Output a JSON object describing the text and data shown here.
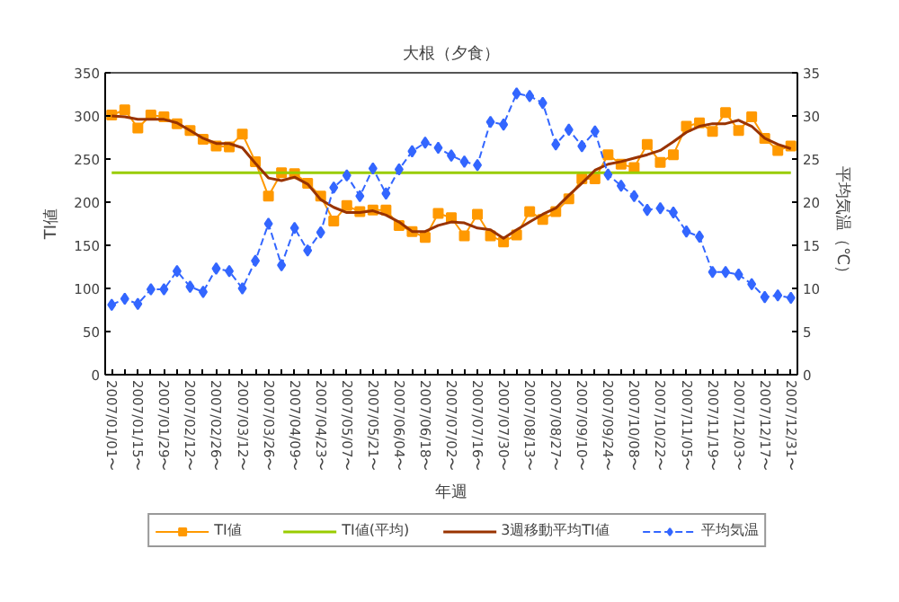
{
  "chart_data": {
    "type": "line",
    "title": "大根（夕食）",
    "xlabel": "年週",
    "ylabel": "TI値",
    "y2label": "平均気温（℃）",
    "categories": [
      "2007/01/01〜",
      null,
      "2007/01/15〜",
      null,
      "2007/01/29〜",
      null,
      "2007/02/12〜",
      null,
      "2007/02/26〜",
      null,
      "2007/03/12〜",
      null,
      "2007/03/26〜",
      null,
      "2007/04/09〜",
      null,
      "2007/04/23〜",
      null,
      "2007/05/07〜",
      null,
      "2007/05/21〜",
      null,
      "2007/06/04〜",
      null,
      "2007/06/18〜",
      null,
      "2007/07/02〜",
      null,
      "2007/07/16〜",
      null,
      "2007/07/30〜",
      null,
      "2007/08/13〜",
      null,
      "2007/08/27〜",
      null,
      "2007/09/10〜",
      null,
      "2007/09/24〜",
      null,
      "2007/10/08〜",
      null,
      "2007/10/22〜",
      null,
      "2007/11/05〜",
      null,
      "2007/11/19〜",
      null,
      "2007/12/03〜",
      null,
      "2007/12/17〜",
      null,
      "2007/12/31〜"
    ],
    "ylim": [
      0,
      350
    ],
    "yticks": [
      0,
      50,
      100,
      150,
      200,
      250,
      300,
      350
    ],
    "y2lim": [
      0,
      35
    ],
    "y2ticks": [
      0,
      5,
      10,
      15,
      20,
      25,
      30,
      35
    ],
    "grid": false,
    "legend": "bottom",
    "series": [
      {
        "name": "TI値",
        "color": "#ff9900",
        "marker": "square",
        "line_style": "solid",
        "values": [
          301,
          307,
          286,
          301,
          299,
          291,
          283,
          273,
          265,
          264,
          279,
          247,
          207,
          234,
          233,
          222,
          207,
          178,
          196,
          189,
          191,
          191,
          173,
          166,
          159,
          187,
          182,
          161,
          186,
          161,
          154,
          162,
          189,
          180,
          189,
          204,
          227,
          227,
          255,
          244,
          240,
          267,
          246,
          255,
          288,
          292,
          282,
          304,
          283,
          299,
          274,
          260,
          265
        ]
      },
      {
        "name": "TI値(平均)",
        "color": "#99cc00",
        "marker": "none",
        "line_style": "solid",
        "values": [
          234,
          234,
          234,
          234,
          234,
          234,
          234,
          234,
          234,
          234,
          234,
          234,
          234,
          234,
          234,
          234,
          234,
          234,
          234,
          234,
          234,
          234,
          234,
          234,
          234,
          234,
          234,
          234,
          234,
          234,
          234,
          234,
          234,
          234,
          234,
          234,
          234,
          234,
          234,
          234,
          234,
          234,
          234,
          234,
          234,
          234,
          234,
          234,
          234,
          234,
          234,
          234,
          234
        ]
      },
      {
        "name": "3週移動平均TI値",
        "color": "#993300",
        "marker": "none",
        "line_style": "solid",
        "values": [
          300,
          299,
          296,
          296,
          296,
          292,
          283,
          274,
          268,
          268,
          263,
          245,
          228,
          225,
          229,
          221,
          203,
          194,
          188,
          188,
          190,
          185,
          177,
          166,
          166,
          173,
          177,
          176,
          170,
          168,
          158,
          168,
          177,
          186,
          193,
          208,
          222,
          237,
          244,
          247,
          251,
          255,
          260,
          270,
          281,
          288,
          291,
          291,
          295,
          288,
          274,
          267,
          262
        ]
      },
      {
        "name": "平均気温",
        "color": "#3366ff",
        "marker": "diamond",
        "line_style": "dashed",
        "axis": "y2",
        "values": [
          8.1,
          8.8,
          8.2,
          9.9,
          9.9,
          12.0,
          10.2,
          9.6,
          12.3,
          12.0,
          10.0,
          13.2,
          17.5,
          12.7,
          17.0,
          14.4,
          16.5,
          21.7,
          23.1,
          20.7,
          23.9,
          21.0,
          23.8,
          25.9,
          26.9,
          26.3,
          25.4,
          24.7,
          24.3,
          29.3,
          29.0,
          32.6,
          32.3,
          31.5,
          26.7,
          28.4,
          26.5,
          28.2,
          23.2,
          21.9,
          20.7,
          19.1,
          19.3,
          18.8,
          16.6,
          16.0,
          11.9,
          11.9,
          11.6,
          10.5,
          9.0,
          9.2,
          8.9
        ]
      }
    ]
  }
}
